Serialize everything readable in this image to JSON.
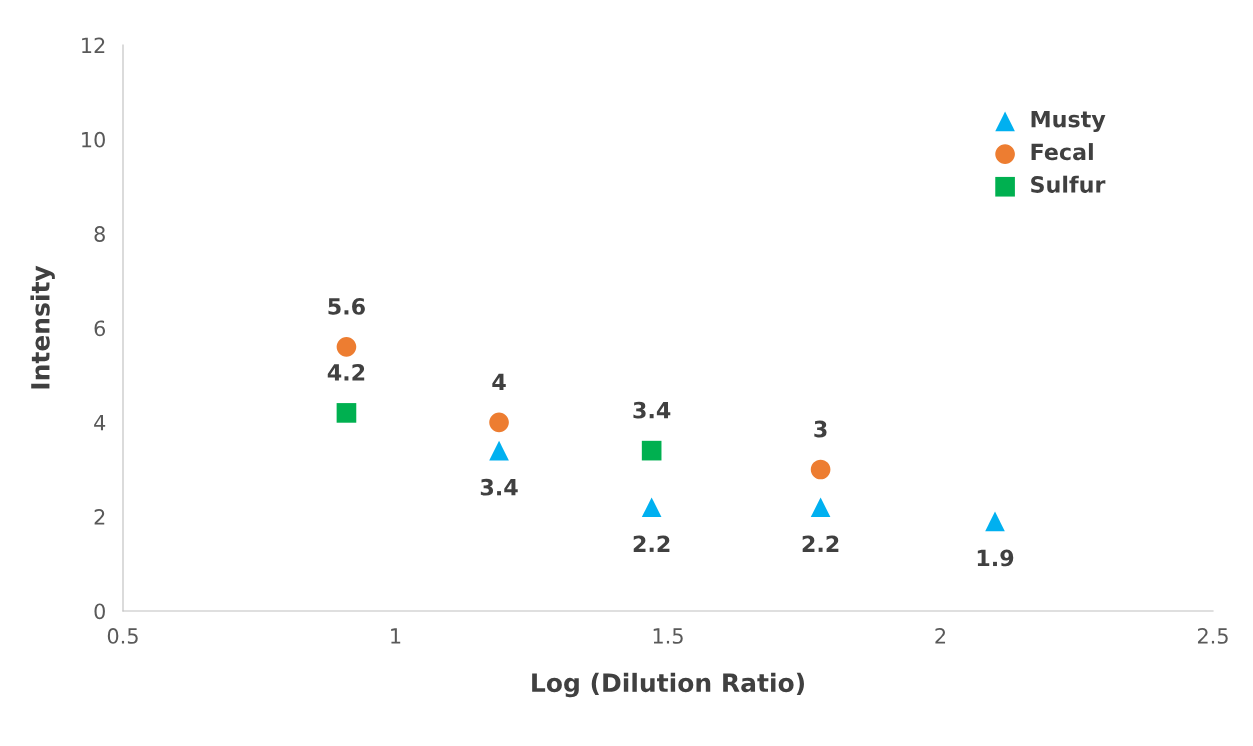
{
  "chart_data": {
    "type": "scatter",
    "xlabel": "Log (Dilution Ratio)",
    "ylabel": "Intensity",
    "xlim": [
      0.5,
      2.5
    ],
    "xticks": [
      0.5,
      1,
      1.5,
      2,
      2.5
    ],
    "ylim": [
      0,
      12
    ],
    "yticks": [
      0,
      2,
      4,
      6,
      8,
      10,
      12
    ],
    "grid": false,
    "legend": "top right",
    "data_labels": true,
    "series": [
      {
        "name": "Musty",
        "color": "#00b0f0",
        "marker": "triangle",
        "x": [
          1.19,
          1.47,
          1.78,
          2.1
        ],
        "values": [
          3.4,
          2.2,
          2.2,
          1.9
        ]
      },
      {
        "name": "Fecal",
        "color": "#ed7d31",
        "marker": "circle",
        "x": [
          0.91,
          1.19,
          1.78
        ],
        "values": [
          5.6,
          4,
          3
        ]
      },
      {
        "name": "Sulfur",
        "color": "#00b050",
        "marker": "square",
        "x": [
          0.91,
          1.47
        ],
        "values": [
          4.2,
          3.4
        ]
      }
    ]
  }
}
